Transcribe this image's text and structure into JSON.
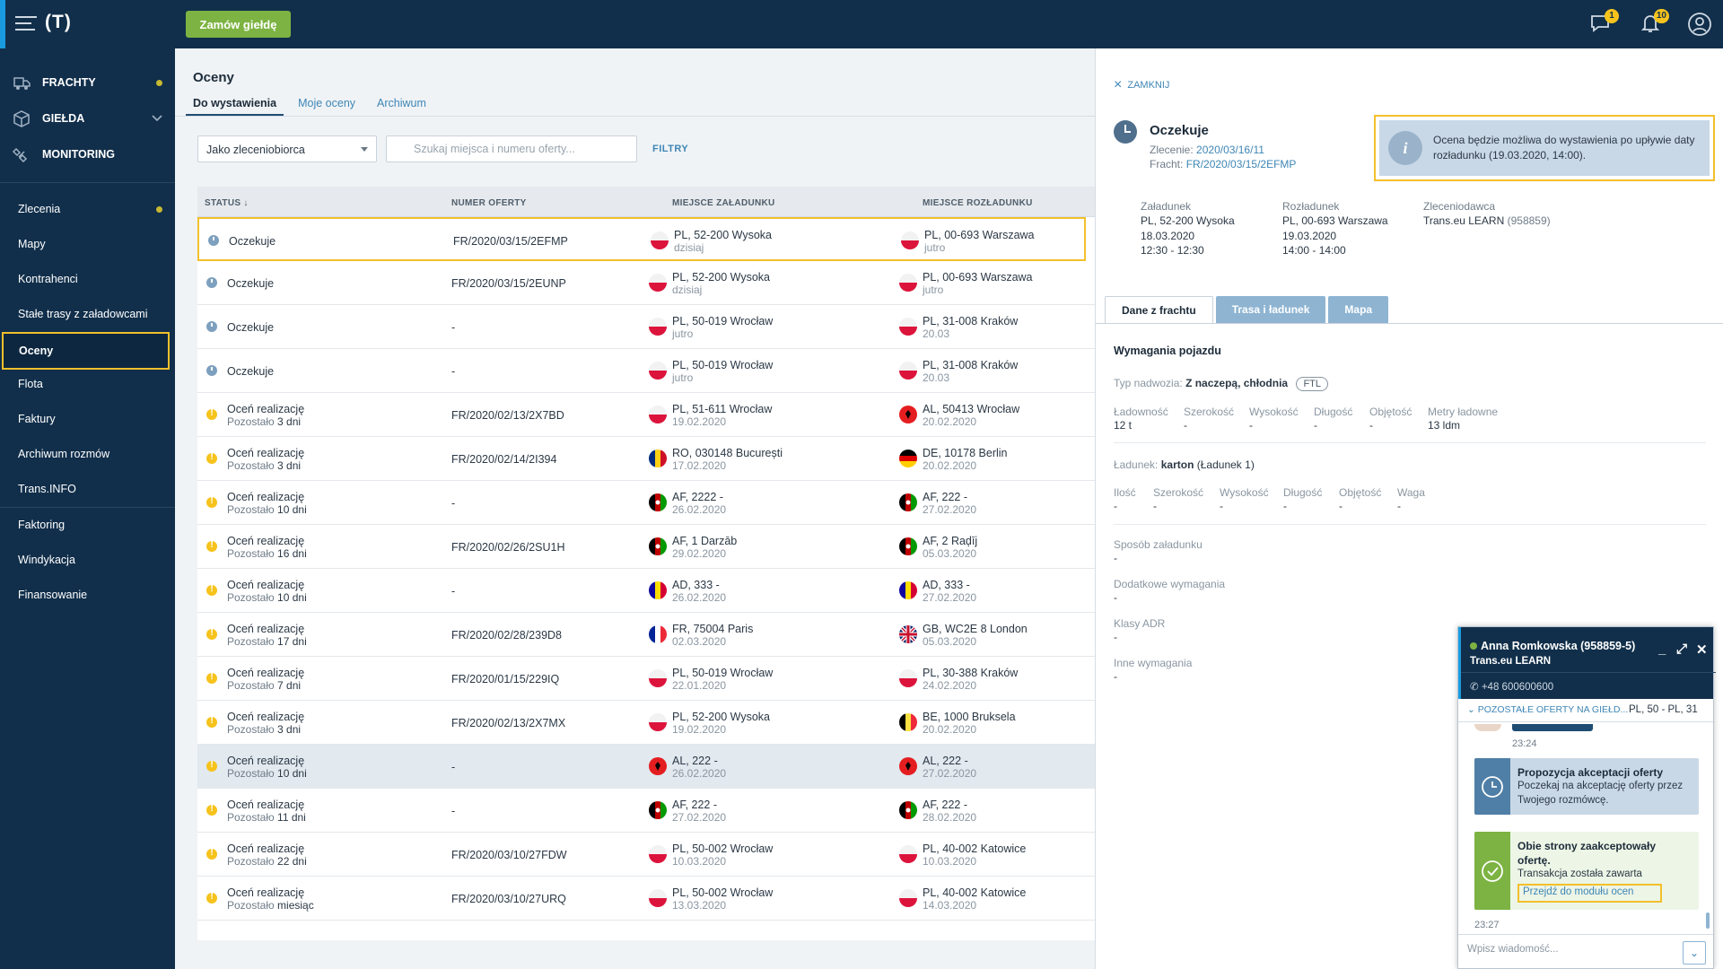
{
  "topbar": {
    "logo": "(T)",
    "order_button": "Zamów giełdę",
    "messages_badge": "1",
    "notifications_badge": "10"
  },
  "sidebar": {
    "main": [
      {
        "label": "FRACHTY"
      },
      {
        "label": "GIEŁDA"
      },
      {
        "label": "MONITORING"
      }
    ],
    "items": [
      {
        "label": "Zlecenia"
      },
      {
        "label": "Mapy"
      },
      {
        "label": "Kontrahenci"
      },
      {
        "label": "Stałe trasy z załadowcami"
      },
      {
        "label": "Oceny"
      },
      {
        "label": "Flota"
      },
      {
        "label": "Faktury"
      },
      {
        "label": "Archiwum rozmów"
      },
      {
        "label": "Trans.INFO"
      },
      {
        "label": "Faktoring"
      },
      {
        "label": "Windykacja"
      },
      {
        "label": "Finansowanie"
      }
    ]
  },
  "main": {
    "title": "Oceny",
    "tabs": [
      "Do wystawienia",
      "Moje oceny",
      "Archiwum"
    ],
    "role_select": "Jako zleceniobiorca",
    "search_placeholder": "Szukaj miejsca i numeru oferty...",
    "filters": "FILTRY",
    "columns": [
      "STATUS ↓",
      "NUMER OFERTY",
      "MIEJSCE ZAŁADUNKU",
      "MIEJSCE ROZŁADUNKU"
    ],
    "rows": [
      {
        "status": "Oczekuje",
        "sub_pre": "",
        "sub_val": "",
        "offer": "FR/2020/03/15/2EFMP",
        "load": "PL, 52-200 Wysoka",
        "load_date": "dzisiaj",
        "unload": "PL, 00-693 Warszawa",
        "unload_date": "jutro",
        "kind": "clock",
        "lflag": "pl",
        "uflag": "pl"
      },
      {
        "status": "Oczekuje",
        "sub_pre": "",
        "sub_val": "",
        "offer": "FR/2020/03/15/2EUNP",
        "load": "PL, 52-200 Wysoka",
        "load_date": "dzisiaj",
        "unload": "PL, 00-693 Warszawa",
        "unload_date": "jutro",
        "kind": "clock",
        "lflag": "pl",
        "uflag": "pl"
      },
      {
        "status": "Oczekuje",
        "sub_pre": "",
        "sub_val": "",
        "offer": "-",
        "load": "PL, 50-019 Wrocław",
        "load_date": "jutro",
        "unload": "PL, 31-008 Kraków",
        "unload_date": "20.03",
        "kind": "clock",
        "lflag": "pl",
        "uflag": "pl"
      },
      {
        "status": "Oczekuje",
        "sub_pre": "",
        "sub_val": "",
        "offer": "-",
        "load": "PL, 50-019 Wrocław",
        "load_date": "jutro",
        "unload": "PL, 31-008 Kraków",
        "unload_date": "20.03",
        "kind": "clock",
        "lflag": "pl",
        "uflag": "pl"
      },
      {
        "status": "Oceń realizację",
        "sub_pre": "Pozostało",
        "sub_val": "3 dni",
        "offer": "FR/2020/02/13/2X7BD",
        "load": "PL, 51-611 Wrocław",
        "load_date": "19.02.2020",
        "unload": "AL, 50413 Wrocław",
        "unload_date": "20.02.2020",
        "kind": "warn",
        "lflag": "pl",
        "uflag": "al"
      },
      {
        "status": "Oceń realizację",
        "sub_pre": "Pozostało",
        "sub_val": "3 dni",
        "offer": "FR/2020/02/14/2I394",
        "load": "RO, 030148 București",
        "load_date": "17.02.2020",
        "unload": "DE, 10178 Berlin",
        "unload_date": "20.02.2020",
        "kind": "warn",
        "lflag": "ro",
        "uflag": "de"
      },
      {
        "status": "Oceń realizację",
        "sub_pre": "Pozostało",
        "sub_val": "10 dni",
        "offer": "-",
        "load": "AF, 2222 -",
        "load_date": "26.02.2020",
        "unload": "AF, 222 -",
        "unload_date": "27.02.2020",
        "kind": "warn",
        "lflag": "af",
        "uflag": "af"
      },
      {
        "status": "Oceń realizację",
        "sub_pre": "Pozostało",
        "sub_val": "16 dni",
        "offer": "FR/2020/02/26/2SU1H",
        "load": "AF, 1 Darzāb",
        "load_date": "29.02.2020",
        "unload": "AF, 2 Raḑīj",
        "unload_date": "05.03.2020",
        "kind": "warn",
        "lflag": "af",
        "uflag": "af"
      },
      {
        "status": "Oceń realizację",
        "sub_pre": "Pozostało",
        "sub_val": "10 dni",
        "offer": "-",
        "load": "AD, 333 -",
        "load_date": "26.02.2020",
        "unload": "AD, 333 -",
        "unload_date": "27.02.2020",
        "kind": "warn",
        "lflag": "ad",
        "uflag": "ad"
      },
      {
        "status": "Oceń realizację",
        "sub_pre": "Pozostało",
        "sub_val": "17 dni",
        "offer": "FR/2020/02/28/239D8",
        "load": "FR, 75004 Paris",
        "load_date": "02.03.2020",
        "unload": "GB, WC2E 8 London",
        "unload_date": "05.03.2020",
        "kind": "warn",
        "lflag": "fr",
        "uflag": "gb"
      },
      {
        "status": "Oceń realizację",
        "sub_pre": "Pozostało",
        "sub_val": "7 dni",
        "offer": "FR/2020/01/15/229IQ",
        "load": "PL, 50-019 Wrocław",
        "load_date": "22.01.2020",
        "unload": "PL, 30-388 Kraków",
        "unload_date": "24.02.2020",
        "kind": "warn",
        "lflag": "pl",
        "uflag": "pl"
      },
      {
        "status": "Oceń realizację",
        "sub_pre": "Pozostało",
        "sub_val": "3 dni",
        "offer": "FR/2020/02/13/2X7MX",
        "load": "PL, 52-200 Wysoka",
        "load_date": "19.02.2020",
        "unload": "BE, 1000 Bruksela",
        "unload_date": "20.02.2020",
        "kind": "warn",
        "lflag": "pl",
        "uflag": "be"
      },
      {
        "status": "Oceń realizację",
        "sub_pre": "Pozostało",
        "sub_val": "10 dni",
        "offer": "-",
        "load": "AL, 222 -",
        "load_date": "26.02.2020",
        "unload": "AL, 222 -",
        "unload_date": "27.02.2020",
        "kind": "warn",
        "lflag": "al",
        "uflag": "al"
      },
      {
        "status": "Oceń realizację",
        "sub_pre": "Pozostało",
        "sub_val": "11 dni",
        "offer": "-",
        "load": "AF, 222 -",
        "load_date": "27.02.2020",
        "unload": "AF, 222 -",
        "unload_date": "28.02.2020",
        "kind": "warn",
        "lflag": "af",
        "uflag": "af"
      },
      {
        "status": "Oceń realizację",
        "sub_pre": "Pozostało",
        "sub_val": "22 dni",
        "offer": "FR/2020/03/10/27FDW",
        "load": "PL, 50-002 Wrocław",
        "load_date": "10.03.2020",
        "unload": "PL, 40-002 Katowice",
        "unload_date": "10.03.2020",
        "kind": "warn",
        "lflag": "pl",
        "uflag": "pl"
      },
      {
        "status": "Oceń realizację",
        "sub_pre": "Pozostało",
        "sub_val": "miesiąc",
        "offer": "FR/2020/03/10/27URQ",
        "load": "PL, 50-002 Wrocław",
        "load_date": "13.03.2020",
        "unload": "PL, 40-002 Katowice",
        "unload_date": "14.03.2020",
        "kind": "warn",
        "lflag": "pl",
        "uflag": "pl"
      }
    ]
  },
  "panel": {
    "close": "ZAMKNIJ",
    "status": "Oczekuje",
    "order_label": "Zlecenie:",
    "order_value": "2020/03/16/11",
    "freight_label": "Fracht:",
    "freight_value": "FR/2020/03/15/2EFMP",
    "info": "Ocena będzie możliwa do wystawienia po upływie daty rozładunku (19.03.2020, 14:00).",
    "loading_label": "Załadunek",
    "loading_place": "PL, 52-200 Wysoka",
    "loading_date": "18.03.2020",
    "loading_time": "12:30 - 12:30",
    "unloading_label": "Rozładunek",
    "unloading_place": "PL, 00-693 Warszawa",
    "unloading_date": "19.03.2020",
    "unloading_time": "14:00 - 14:00",
    "principal_label": "Zleceniodawca",
    "principal_name": "Trans.eu LEARN",
    "principal_id": "(958859)",
    "tabs": [
      "Dane z frachtu",
      "Trasa i ładunek",
      "Mapa"
    ],
    "vehicle_title": "Wymagania pojazdu",
    "body_label": "Typ nadwozia:",
    "body_value": "Z naczepą, chłodnia",
    "ftl": "FTL",
    "vehicle_fields": [
      {
        "label": "Ładowność",
        "value": "12 t"
      },
      {
        "label": "Szerokość",
        "value": "-"
      },
      {
        "label": "Wysokość",
        "value": "-"
      },
      {
        "label": "Długość",
        "value": "-"
      },
      {
        "label": "Objętość",
        "value": "-"
      },
      {
        "label": "Metry ładowne",
        "value": "13 ldm"
      }
    ],
    "cargo_label": "Ładunek:",
    "cargo_value": "karton",
    "cargo_sub": "(Ładunek 1)",
    "cargo_fields": [
      {
        "label": "Ilość",
        "value": "-"
      },
      {
        "label": "Szerokość",
        "value": "-"
      },
      {
        "label": "Wysokość",
        "value": "-"
      },
      {
        "label": "Długość",
        "value": "-"
      },
      {
        "label": "Objętość",
        "value": "-"
      },
      {
        "label": "Waga",
        "value": "-"
      }
    ],
    "extra": [
      {
        "label": "Sposób załadunku",
        "value": "-"
      },
      {
        "label": "Dodatkowe wymagania",
        "value": "-"
      },
      {
        "label": "Klasy ADR",
        "value": "-"
      },
      {
        "label": "Inne wymagania",
        "value": "-"
      }
    ]
  },
  "chat": {
    "name": "Anna Romkowska (958859-5)",
    "company": "Trans.eu LEARN",
    "phone": "+48 600600600",
    "offers_label": "POZOSTAŁE OFERTY NA GIEŁD...",
    "offers_route": "PL, 50 - PL, 31",
    "time1": "23:24",
    "msg1_title": "Propozycja akceptacji oferty",
    "msg1_text": "Poczekaj na akceptację oferty przez Twojego rozmówcę.",
    "msg2_title": "Obie strony zaakceptowały ofertę.",
    "msg2_text": "Transakcja została zawarta",
    "msg2_link": "Przejdź do modułu ocen",
    "time2": "23:27",
    "input_placeholder": "Wpisz wiadomość..."
  }
}
